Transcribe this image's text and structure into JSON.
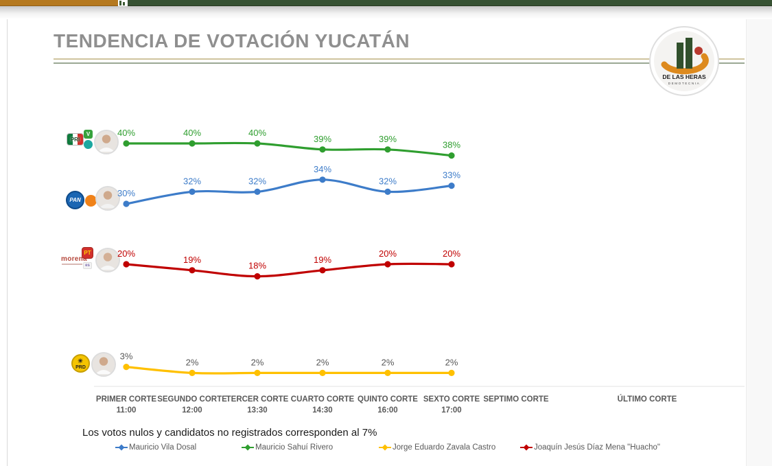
{
  "header": {
    "title": "TENDENCIA DE VOTACIÓN YUCATÁN",
    "logo": {
      "name": "DE LAS HERAS",
      "subtitle": "DEMOTECNIA"
    }
  },
  "parties": {
    "pri": "PRI",
    "pvem": "V",
    "pan": "PAN",
    "morena": "morena",
    "pt": "PT",
    "pes": "es",
    "prd": "PRD"
  },
  "chart_data": {
    "type": "line",
    "categories": [
      {
        "label": "PRIMER CORTE",
        "time": "11:00"
      },
      {
        "label": "SEGUNDO CORTE",
        "time": "12:00"
      },
      {
        "label": "TERCER CORTE",
        "time": "13:30"
      },
      {
        "label": "CUARTO CORTE",
        "time": "14:30"
      },
      {
        "label": "QUINTO CORTE",
        "time": "16:00"
      },
      {
        "label": "SEXTO CORTE",
        "time": "17:00"
      },
      {
        "label": "SEPTIMO CORTE",
        "time": ""
      },
      {
        "label": "ÚLTIMO CORTE",
        "time": ""
      }
    ],
    "unit": "%",
    "ylim": [
      0,
      45
    ],
    "grid": false,
    "legend_position": "bottom",
    "series": [
      {
        "name": "Mauricio Sahuí Rivero",
        "color": "#2f9e2f",
        "label_color": "#2f9e2f",
        "values": [
          40,
          40,
          40,
          39,
          39,
          38
        ]
      },
      {
        "name": "Mauricio Vila Dosal",
        "color": "#3d7cc9",
        "label_color": "#3d7cc9",
        "values": [
          30,
          32,
          32,
          34,
          32,
          33
        ]
      },
      {
        "name": "Joaquín Jesús Díaz Mena \"Huacho\"",
        "color": "#c00000",
        "label_color": "#c00000",
        "values": [
          20,
          19,
          18,
          19,
          20,
          20
        ]
      },
      {
        "name": "Jorge Eduardo Zavala Castro",
        "color": "#ffc000",
        "label_color": "#595959",
        "values": [
          3,
          2,
          2,
          2,
          2,
          2
        ]
      }
    ],
    "legend": [
      {
        "name": "Mauricio Vila Dosal",
        "color": "#3d7cc9"
      },
      {
        "name": "Mauricio Sahuí Rivero",
        "color": "#2f9e2f"
      },
      {
        "name": "Jorge Eduardo Zavala Castro",
        "color": "#ffc000"
      },
      {
        "name": "Joaquín Jesús Díaz Mena \"Huacho\"",
        "color": "#c00000"
      }
    ],
    "note": "Los votos nulos y candidatos no registrados  corresponden al 7%"
  }
}
